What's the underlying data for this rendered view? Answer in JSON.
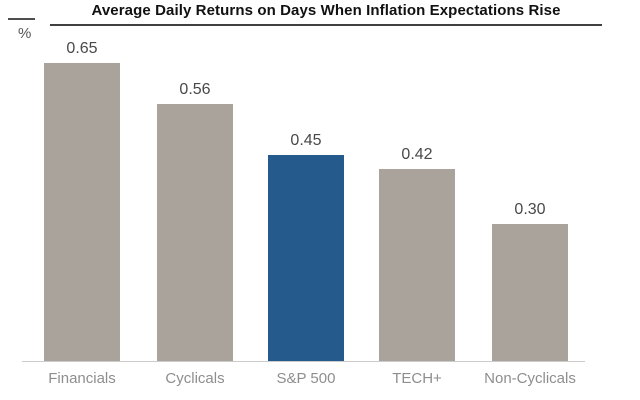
{
  "chart": {
    "title": "Average Daily Returns on Days When Inflation Expectations Rise",
    "unit_label": "%"
  },
  "chart_data": {
    "type": "bar",
    "title": "Average Daily Returns on Days When Inflation Expectations Rise",
    "xlabel": "",
    "ylabel": "%",
    "categories": [
      "Financials",
      "Cyclicals",
      "S&P 500",
      "TECH+",
      "Non-Cyclicals"
    ],
    "values": [
      0.65,
      0.56,
      0.45,
      0.42,
      0.3
    ],
    "value_labels": [
      "0.65",
      "0.56",
      "0.45",
      "0.42",
      "0.30"
    ],
    "highlight_index": 2,
    "ylim": [
      0,
      0.79
    ],
    "grid": false,
    "legend": false,
    "y_axis_ticks": "none",
    "colors": {
      "bar": "#aaa39c",
      "highlight": "#255a8c",
      "axis_line": "#cbcbcb",
      "title_rule": "#404040",
      "value_label": "#484848",
      "category_label": "#8e8e8e",
      "background": "#ffffff"
    }
  }
}
